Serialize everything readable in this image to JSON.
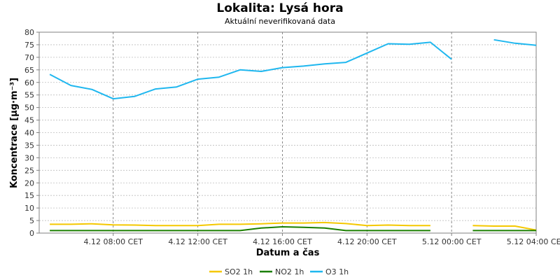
{
  "chart_data": {
    "type": "line",
    "title": "Lokalita: Lysá hora",
    "subtitle": "Aktuální neverifikovaná data",
    "xlabel": "Datum a čas",
    "ylabel": "Koncentrace [µg·m⁻³]",
    "ylim": [
      0,
      80
    ],
    "y_ticks": [
      0,
      5,
      10,
      15,
      20,
      25,
      30,
      35,
      40,
      45,
      50,
      55,
      60,
      65,
      70,
      75,
      80
    ],
    "x_start": "4.12 04:30 CET",
    "x_end": "5.12 04:00 CET",
    "x_tick_labels": [
      "4.12 08:00 CET",
      "4.12 12:00 CET",
      "4.12 16:00 CET",
      "4.12 20:00 CET",
      "5.12 00:00 CET",
      "5.12 04:00 CET"
    ],
    "grid": true,
    "legend_position": "bottom",
    "x": [
      "4.12 05:00",
      "4.12 06:00",
      "4.12 07:00",
      "4.12 08:00",
      "4.12 09:00",
      "4.12 10:00",
      "4.12 11:00",
      "4.12 12:00",
      "4.12 13:00",
      "4.12 14:00",
      "4.12 15:00",
      "4.12 16:00",
      "4.12 17:00",
      "4.12 18:00",
      "4.12 19:00",
      "4.12 20:00",
      "4.12 21:00",
      "4.12 22:00",
      "4.12 23:00",
      "5.12 00:00",
      "5.12 01:00",
      "5.12 02:00",
      "5.12 03:00",
      "5.12 04:00"
    ],
    "series": [
      {
        "name": "SO2 1h",
        "color": "#f5c800",
        "values": [
          3.5,
          3.5,
          3.7,
          3.3,
          3.2,
          3.0,
          3.0,
          3.0,
          3.5,
          3.5,
          3.7,
          4.0,
          4.0,
          4.2,
          3.8,
          3.0,
          3.2,
          3.0,
          3.0,
          null,
          3.0,
          2.8,
          2.8,
          1.2
        ]
      },
      {
        "name": "NO2 1h",
        "color": "#1a7f00",
        "values": [
          1.0,
          1.0,
          1.0,
          1.0,
          1.0,
          1.0,
          1.0,
          1.0,
          1.0,
          1.0,
          2.0,
          2.5,
          2.3,
          2.0,
          1.0,
          1.0,
          1.0,
          1.0,
          1.0,
          null,
          1.0,
          1.0,
          1.0,
          1.0
        ]
      },
      {
        "name": "O3 1h",
        "color": "#1fb7ef",
        "values": [
          63.2,
          58.8,
          57.2,
          53.5,
          54.4,
          57.4,
          58.2,
          61.3,
          62.1,
          65.0,
          64.4,
          65.9,
          66.5,
          67.4,
          68.0,
          71.7,
          75.4,
          75.2,
          76.0,
          69.2,
          null,
          77.0,
          75.6,
          74.8
        ]
      }
    ]
  }
}
